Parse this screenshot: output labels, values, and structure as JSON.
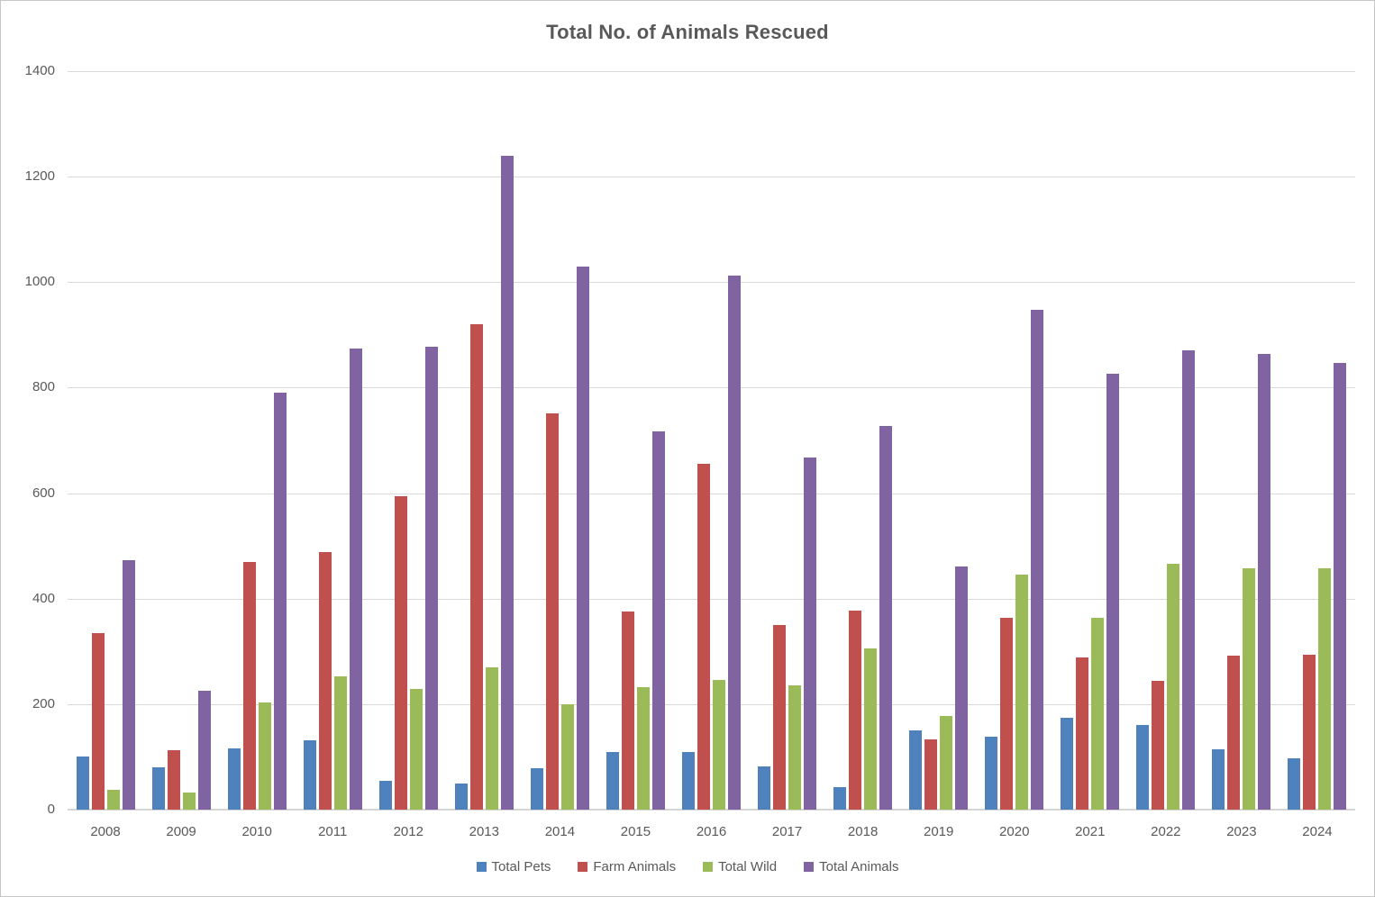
{
  "chart_data": {
    "type": "bar",
    "title": "Total No. of Animals Rescued",
    "categories": [
      "2008",
      "2009",
      "2010",
      "2011",
      "2012",
      "2013",
      "2014",
      "2015",
      "2016",
      "2017",
      "2018",
      "2019",
      "2020",
      "2021",
      "2022",
      "2023",
      "2024"
    ],
    "series": [
      {
        "name": "Total Pets",
        "color": "#4F81BD",
        "values": [
          100,
          80,
          116,
          132,
          55,
          50,
          78,
          110,
          110,
          82,
          43,
          150,
          138,
          174,
          160,
          114,
          97
        ]
      },
      {
        "name": "Farm Animals",
        "color": "#C0504D",
        "values": [
          335,
          113,
          470,
          489,
          595,
          920,
          752,
          375,
          656,
          350,
          378,
          133,
          364,
          289,
          245,
          292,
          293
        ]
      },
      {
        "name": "Total Wild",
        "color": "#9BBB59",
        "values": [
          38,
          33,
          204,
          253,
          228,
          270,
          200,
          232,
          246,
          235,
          306,
          178,
          445,
          363,
          466,
          458,
          457
        ]
      },
      {
        "name": "Total Animals",
        "color": "#8064A2",
        "values": [
          473,
          226,
          790,
          874,
          878,
          1240,
          1030,
          717,
          1012,
          667,
          727,
          461,
          947,
          826,
          871,
          864,
          847
        ]
      }
    ],
    "ylim": [
      0,
      1400
    ],
    "ytick_step": 200,
    "ytick_labels": [
      "0",
      "200",
      "400",
      "600",
      "800",
      "1000",
      "1200",
      "1400"
    ],
    "grid": true,
    "legend_position": "bottom",
    "colors": {
      "text": "#595959",
      "gridline": "#D9D9D9",
      "background": "#FFFFFF"
    }
  }
}
